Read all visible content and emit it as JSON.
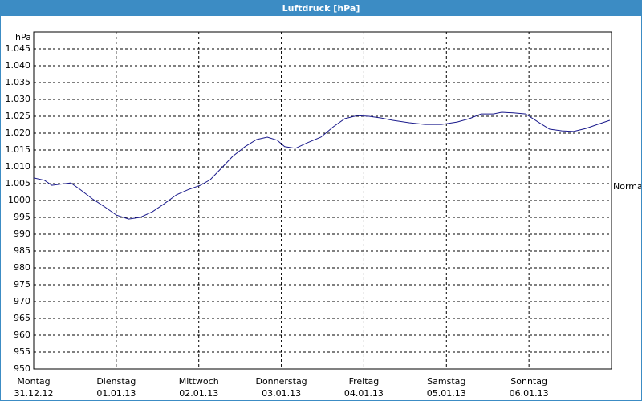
{
  "chart_data": {
    "type": "line",
    "title": "Luftdruck [hPa]",
    "y_label": "hPa",
    "x": [
      0,
      0.13,
      0.22,
      0.32,
      0.45,
      0.56,
      0.71,
      0.86,
      1.0,
      1.15,
      1.29,
      1.44,
      1.58,
      1.73,
      1.88,
      2.02,
      2.14,
      2.27,
      2.41,
      2.56,
      2.7,
      2.83,
      2.95,
      3.04,
      3.17,
      3.31,
      3.48,
      3.63,
      3.77,
      3.92,
      4.06,
      4.21,
      4.35,
      4.55,
      4.74,
      4.94,
      5.13,
      5.28,
      5.42,
      5.57,
      5.67,
      5.81,
      5.96,
      6.11,
      6.25,
      6.4,
      6.54,
      6.69,
      6.83,
      6.98
    ],
    "series": [
      {
        "color": "#1a1a8c",
        "values": [
          1006.7,
          1006,
          1004.5,
          1004.8,
          1005.2,
          1003.3,
          1000.5,
          998.1,
          995.7,
          994.5,
          995,
          996.7,
          999,
          1001.7,
          1003.3,
          1004.5,
          1006.2,
          1009.5,
          1013.1,
          1016,
          1018.1,
          1018.8,
          1017.9,
          1016,
          1015.5,
          1017.1,
          1018.8,
          1021.9,
          1024.3,
          1025.2,
          1025,
          1024.5,
          1023.8,
          1023.1,
          1022.6,
          1022.6,
          1023.3,
          1024.3,
          1025.7,
          1025.7,
          1026.2,
          1026,
          1025.7,
          1023.3,
          1021.2,
          1020.7,
          1020.5,
          1021.4,
          1022.6,
          1023.8
        ]
      }
    ],
    "xlim": [
      0,
      7
    ],
    "xticks": [
      {
        "value": 0,
        "label": "Montag"
      },
      {
        "value": 1,
        "label": "Dienstag"
      },
      {
        "value": 2,
        "label": "Mittwoch"
      },
      {
        "value": 3,
        "label": "Donnerstag"
      },
      {
        "value": 4,
        "label": "Freitag"
      },
      {
        "value": 5,
        "label": "Samstag"
      },
      {
        "value": 6,
        "label": "Sonntag"
      }
    ],
    "xtick_dates": [
      "31.12.12",
      "01.01.13",
      "02.01.13",
      "03.01.13",
      "04.01.13",
      "05.01.13",
      "06.01.13"
    ],
    "ylim": [
      950,
      1050
    ],
    "yticks": [
      950,
      955,
      960,
      965,
      970,
      975,
      980,
      985,
      990,
      995,
      1000,
      {
        "value": 1005,
        "label": "1.005"
      },
      {
        "value": 1010,
        "label": "1.010"
      },
      {
        "value": 1015,
        "label": "1.015"
      },
      {
        "value": 1020,
        "label": "1.020"
      },
      {
        "value": 1025,
        "label": "1.025"
      },
      {
        "value": 1030,
        "label": "1.030"
      },
      {
        "value": 1035,
        "label": "1.035"
      },
      {
        "value": 1040,
        "label": "1.040"
      },
      {
        "value": 1045,
        "label": "1.045"
      }
    ],
    "normal": {
      "value": 1004,
      "label": "Normal"
    },
    "grid": true
  }
}
